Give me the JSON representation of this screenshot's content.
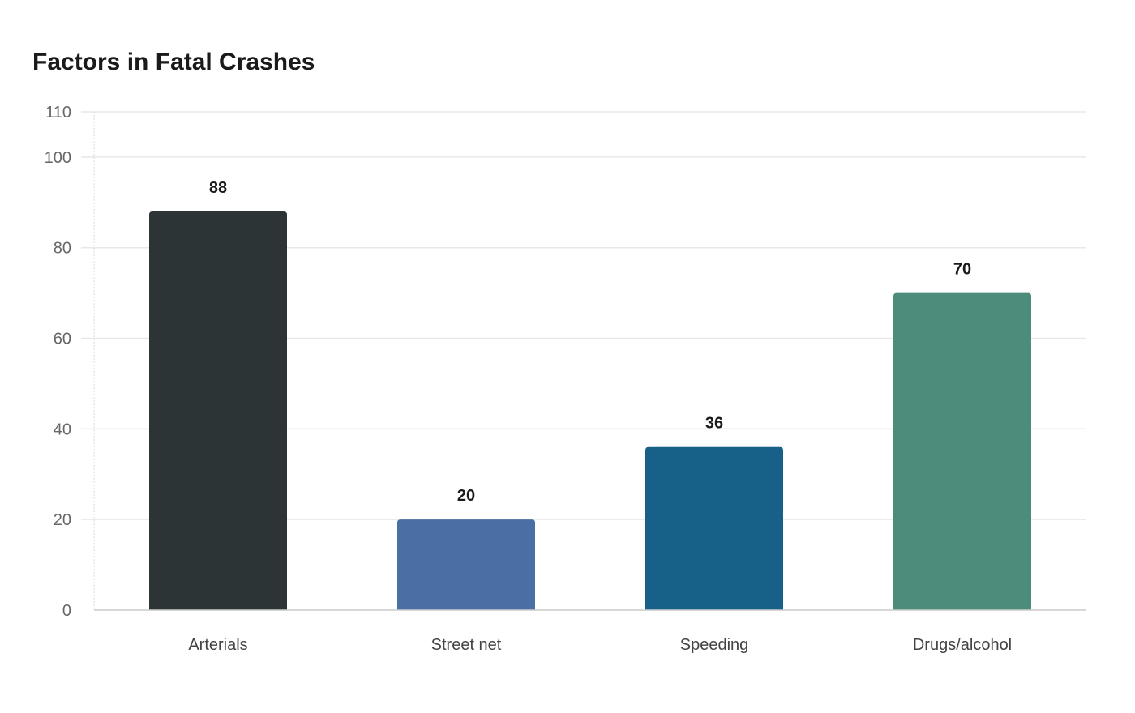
{
  "chart_data": {
    "type": "bar",
    "title": "Factors in Fatal Crashes",
    "xlabel": "",
    "ylabel": "",
    "categories": [
      "Arterials",
      "Street net",
      "Speeding",
      "Drugs/alcohol"
    ],
    "values": [
      88,
      20,
      36,
      70
    ],
    "colors": [
      "#2d3436",
      "#4a6fa5",
      "#176087",
      "#4d8c7a"
    ],
    "ylim": [
      0,
      110
    ],
    "yticks": [
      0,
      20,
      40,
      60,
      80,
      100,
      110
    ],
    "grid": true,
    "data_labels": true
  }
}
